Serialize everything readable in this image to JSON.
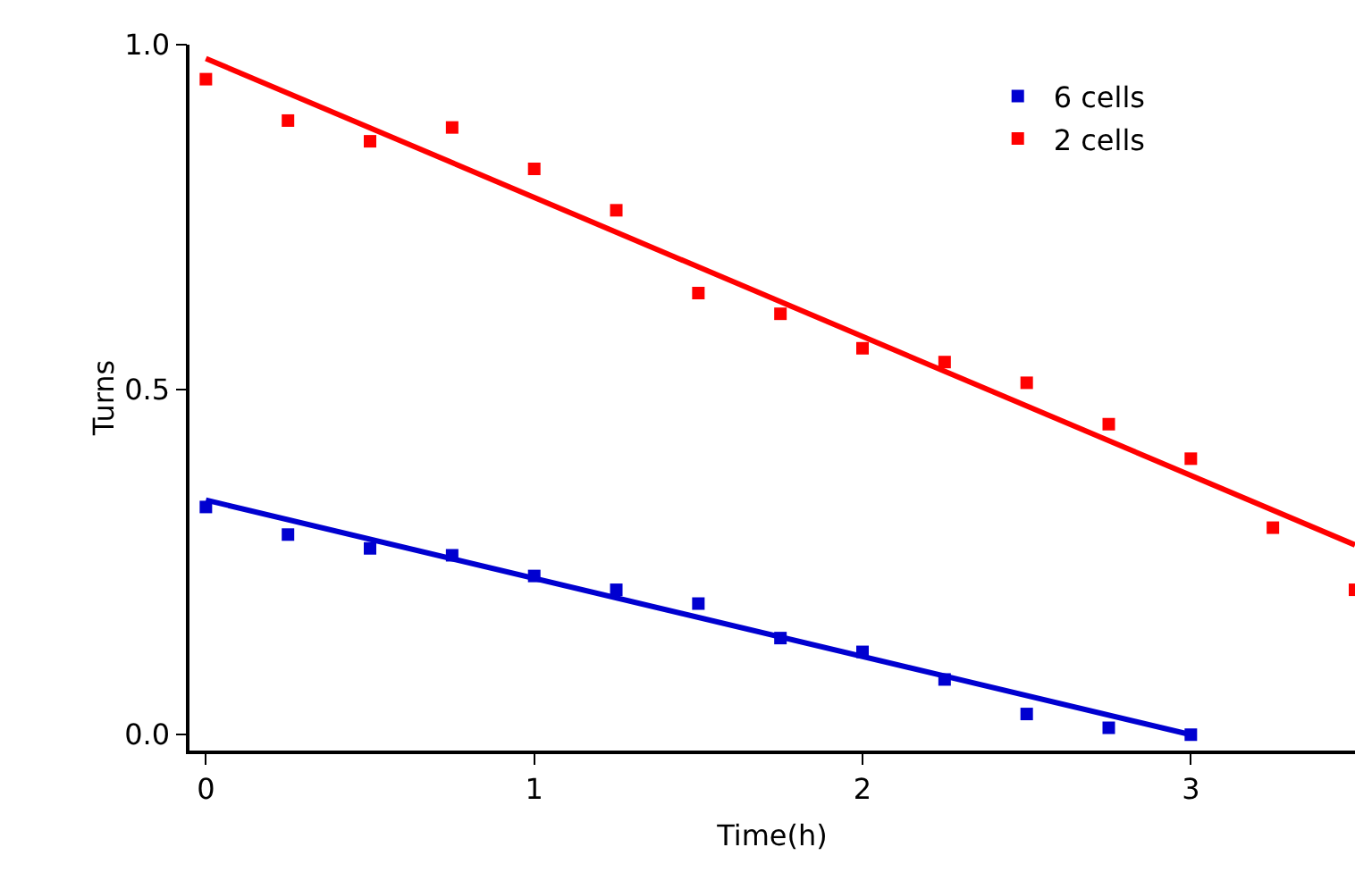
{
  "chart_data": {
    "type": "scatter",
    "xlabel": "Time(h)",
    "ylabel": "Turns",
    "legend": "top right",
    "grid": false,
    "x": [
      0,
      0.25,
      0.5,
      0.75,
      1,
      1.25,
      1.5,
      1.75,
      2,
      2.25,
      2.5,
      2.75,
      3,
      3.25,
      3.5
    ],
    "series": [
      {
        "name": "6 cells",
        "marker": "square",
        "color": "#0000d0",
        "values": [
          0.33,
          0.29,
          0.27,
          0.26,
          0.23,
          0.21,
          0.19,
          0.14,
          0.12,
          0.08,
          0.03,
          0.01,
          0.0,
          null,
          null
        ]
      },
      {
        "name": "2 cells",
        "marker": "square",
        "color": "#ff0000",
        "values": [
          0.95,
          0.89,
          0.86,
          0.88,
          0.82,
          0.76,
          0.64,
          0.61,
          0.56,
          0.54,
          0.51,
          0.45,
          0.4,
          0.3,
          0.21
        ]
      },
      {
        "type": "line",
        "marker": "none",
        "color": "#0000d0",
        "x": [
          0,
          3
        ],
        "values": [
          0.34,
          0.0
        ]
      },
      {
        "type": "line",
        "marker": "none",
        "color": "#ff0000",
        "x": [
          0,
          3.5
        ],
        "values": [
          0.98,
          0.275
        ]
      }
    ],
    "xlim": [
      -0.05,
      3.5
    ],
    "xticks": [
      0,
      1,
      2,
      3
    ],
    "ylim": [
      -0.023,
      1.0
    ],
    "yticks": [
      {
        "value": 0,
        "label": "0.0"
      },
      {
        "value": 0.5,
        "label": "0.5"
      },
      {
        "value": 1,
        "label": "1.0"
      }
    ]
  }
}
